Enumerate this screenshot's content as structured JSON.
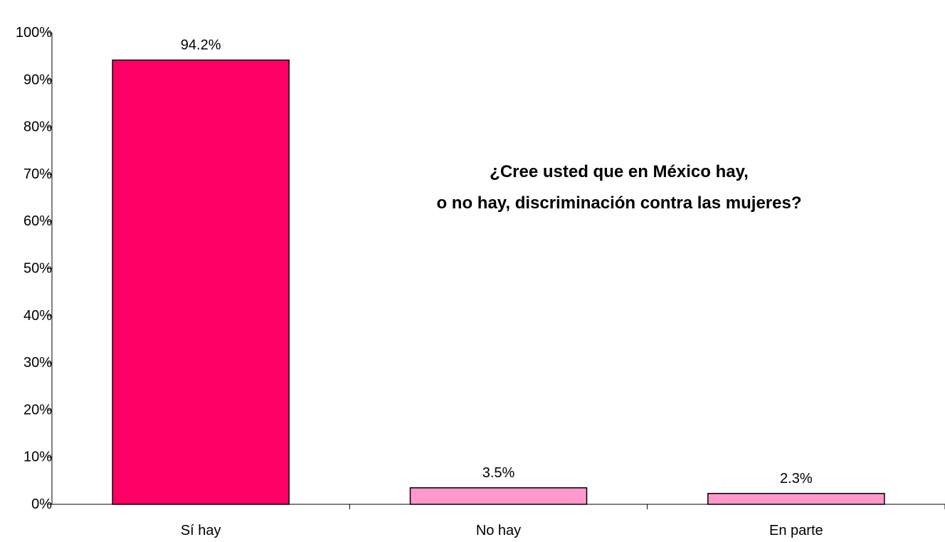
{
  "chart_data": {
    "type": "bar",
    "title_lines": [
      "¿Cree usted que en México hay,",
      "o no hay, discriminación contra las mujeres?"
    ],
    "categories": [
      "Sí hay",
      "No hay",
      "En parte"
    ],
    "values": [
      94.2,
      3.5,
      2.3
    ],
    "data_labels": [
      "94.2%",
      "3.5%",
      "2.3%"
    ],
    "bar_colors": [
      "#ff0066",
      "#ff99cc",
      "#ff99cc"
    ],
    "ylim": [
      0,
      100
    ],
    "yticks": [
      0,
      10,
      20,
      30,
      40,
      50,
      60,
      70,
      80,
      90,
      100
    ],
    "ytick_labels": [
      "0%",
      "10%",
      "20%",
      "30%",
      "40%",
      "50%",
      "60%",
      "70%",
      "80%",
      "90%",
      "100%"
    ],
    "xlabel": "",
    "ylabel": "",
    "grid": false,
    "legend": "none"
  }
}
